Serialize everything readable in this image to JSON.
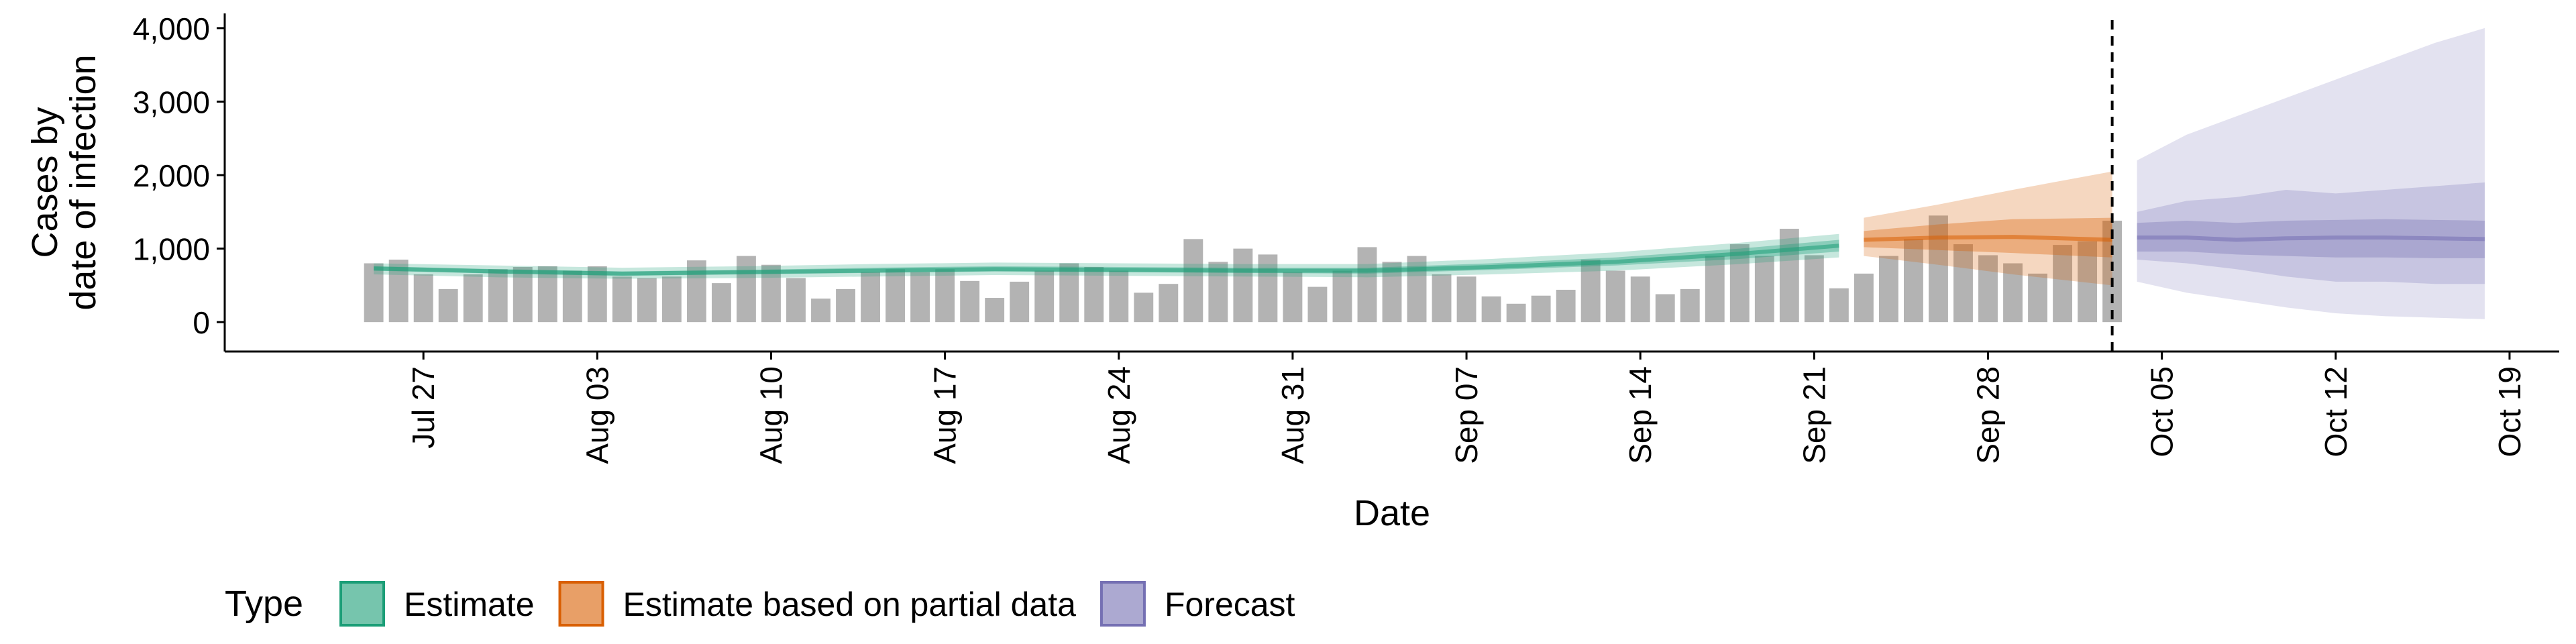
{
  "chart_data": {
    "type": "bar",
    "title": "",
    "xlabel": "Date",
    "ylabel_lines": [
      "Cases by",
      "date of infection"
    ],
    "x_range": [
      "2020-07-19",
      "2020-10-21"
    ],
    "ylim": [
      -400,
      4200
    ],
    "y_ticks": [
      0,
      1000,
      2000,
      3000,
      4000
    ],
    "y_tick_labels": [
      "0",
      "1,000",
      "2,000",
      "3,000",
      "4,000"
    ],
    "x_ticks": [
      "2020-07-27",
      "2020-08-03",
      "2020-08-10",
      "2020-08-17",
      "2020-08-24",
      "2020-08-31",
      "2020-09-07",
      "2020-09-14",
      "2020-09-21",
      "2020-09-28",
      "2020-10-05",
      "2020-10-12",
      "2020-10-19"
    ],
    "x_tick_labels": [
      "Jul 27",
      "Aug 03",
      "Aug 10",
      "Aug 17",
      "Aug 24",
      "Aug 31",
      "Sep 07",
      "Sep 14",
      "Sep 21",
      "Sep 28",
      "Oct 05",
      "Oct 12",
      "Oct 19"
    ],
    "grid": false,
    "legend_position": "bottom",
    "reference_line": "2020-10-03",
    "bars": {
      "start_date": "2020-07-25",
      "values": [
        800,
        850,
        650,
        450,
        650,
        720,
        750,
        760,
        700,
        760,
        620,
        600,
        620,
        840,
        530,
        900,
        780,
        600,
        320,
        450,
        680,
        720,
        680,
        720,
        560,
        330,
        550,
        700,
        800,
        750,
        700,
        400,
        520,
        1130,
        820,
        1000,
        920,
        680,
        480,
        700,
        1020,
        820,
        900,
        650,
        620,
        350,
        250,
        360,
        440,
        850,
        700,
        620,
        380,
        450,
        900,
        1060,
        900,
        1270,
        910,
        460,
        660,
        900,
        1130,
        1450,
        1060,
        910,
        800,
        660,
        1050,
        1100,
        1380
      ]
    },
    "series": [
      {
        "name": "Estimate",
        "color": "#1b9e77",
        "dates": [
          "2020-07-25",
          "2020-07-30",
          "2020-08-04",
          "2020-08-09",
          "2020-08-14",
          "2020-08-19",
          "2020-08-24",
          "2020-08-29",
          "2020-09-03",
          "2020-09-08",
          "2020-09-13",
          "2020-09-18",
          "2020-09-22"
        ],
        "median": [
          730,
          690,
          660,
          680,
          700,
          720,
          710,
          700,
          700,
          750,
          820,
          930,
          1040
        ],
        "inner": [
          [
            700,
            760
          ],
          [
            660,
            720
          ],
          [
            630,
            690
          ],
          [
            650,
            710
          ],
          [
            670,
            740
          ],
          [
            690,
            760
          ],
          [
            680,
            750
          ],
          [
            670,
            740
          ],
          [
            660,
            740
          ],
          [
            710,
            800
          ],
          [
            770,
            880
          ],
          [
            860,
            1000
          ],
          [
            960,
            1120
          ]
        ],
        "outer": [
          [
            650,
            800
          ],
          [
            610,
            770
          ],
          [
            590,
            740
          ],
          [
            600,
            760
          ],
          [
            620,
            790
          ],
          [
            640,
            810
          ],
          [
            630,
            800
          ],
          [
            620,
            790
          ],
          [
            610,
            790
          ],
          [
            650,
            860
          ],
          [
            700,
            950
          ],
          [
            790,
            1080
          ],
          [
            880,
            1200
          ]
        ]
      },
      {
        "name": "Estimate based on partial data",
        "color": "#d95f02",
        "dates": [
          "2020-09-23",
          "2020-09-26",
          "2020-09-29",
          "2020-10-03"
        ],
        "median": [
          1120,
          1150,
          1160,
          1120
        ],
        "inner": [
          [
            1020,
            1240
          ],
          [
            980,
            1330
          ],
          [
            940,
            1400
          ],
          [
            880,
            1420
          ]
        ],
        "outer": [
          [
            900,
            1420
          ],
          [
            780,
            1600
          ],
          [
            650,
            1800
          ],
          [
            500,
            2050
          ]
        ]
      },
      {
        "name": "Forecast",
        "color": "#7570b3",
        "dates": [
          "2020-10-04",
          "2020-10-06",
          "2020-10-08",
          "2020-10-10",
          "2020-10-12",
          "2020-10-14",
          "2020-10-16",
          "2020-10-18"
        ],
        "median": [
          1150,
          1150,
          1120,
          1140,
          1150,
          1150,
          1140,
          1130
        ],
        "inner": [
          [
            960,
            1350
          ],
          [
            960,
            1380
          ],
          [
            920,
            1350
          ],
          [
            900,
            1380
          ],
          [
            880,
            1390
          ],
          [
            880,
            1400
          ],
          [
            870,
            1390
          ],
          [
            870,
            1380
          ]
        ],
        "outer": [
          [
            850,
            1500
          ],
          [
            800,
            1650
          ],
          [
            720,
            1700
          ],
          [
            620,
            1800
          ],
          [
            550,
            1750
          ],
          [
            550,
            1800
          ],
          [
            520,
            1850
          ],
          [
            520,
            1900
          ]
        ],
        "wide": [
          [
            550,
            2200
          ],
          [
            400,
            2550
          ],
          [
            300,
            2800
          ],
          [
            200,
            3050
          ],
          [
            120,
            3300
          ],
          [
            80,
            3550
          ],
          [
            60,
            3800
          ],
          [
            40,
            4000
          ]
        ]
      }
    ],
    "legend": {
      "title": "Type",
      "entries": [
        "Estimate",
        "Estimate based on partial data",
        "Forecast"
      ]
    }
  }
}
